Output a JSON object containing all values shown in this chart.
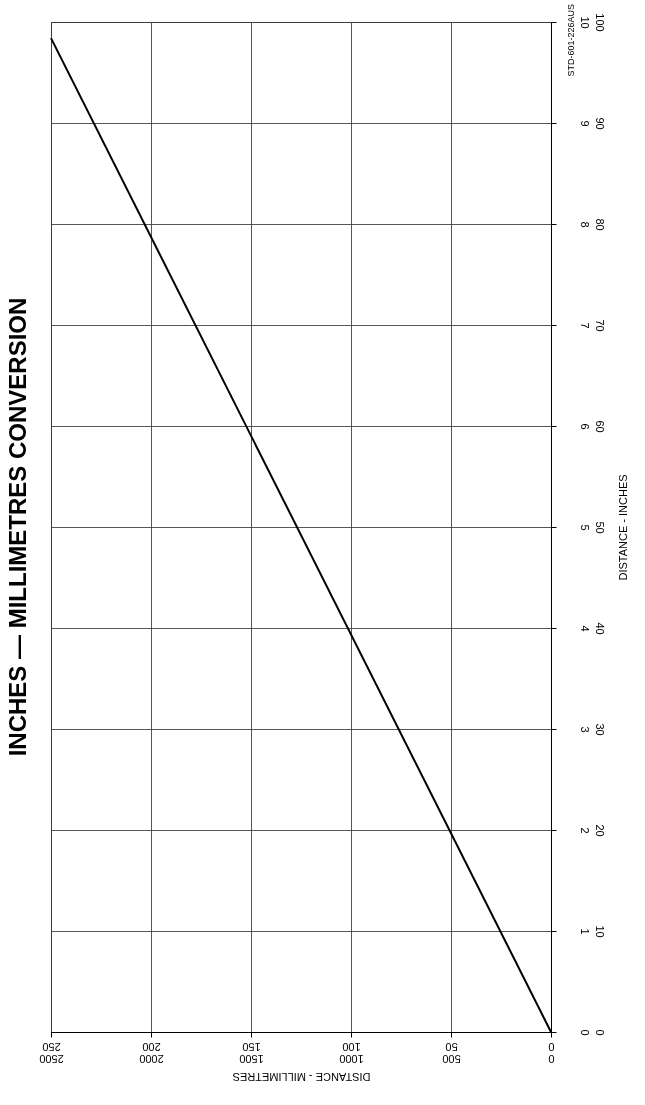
{
  "chart_data": {
    "type": "line",
    "title": "INCHES   —   MILLIMETRES CONVERSION",
    "xlabel": "DISTANCE  -  MILLIMETRES",
    "y2label": "DISTANCE  -  INCHES",
    "x": [
      0,
      250
    ],
    "series": [
      {
        "color": "#000000",
        "values": [
          0,
          9.84
        ]
      }
    ],
    "xlim": [
      250,
      0
    ],
    "xticks": [
      250,
      200,
      150,
      100,
      50,
      0
    ],
    "x2lim": [
      2500,
      0
    ],
    "x2ticks": [
      2500,
      2000,
      1500,
      1000,
      500,
      0
    ],
    "ylim": [
      0,
      10
    ],
    "yticks": [
      0,
      1,
      2,
      3,
      4,
      5,
      6,
      7,
      8,
      9,
      10
    ],
    "y2lim": [
      0,
      100
    ],
    "y2ticks": [
      0,
      10,
      20,
      30,
      40,
      50,
      60,
      70,
      80,
      90,
      100
    ],
    "grid": true,
    "marker": "none",
    "line_style": "solid",
    "annotations": [
      "STD-601-226AUS"
    ]
  }
}
